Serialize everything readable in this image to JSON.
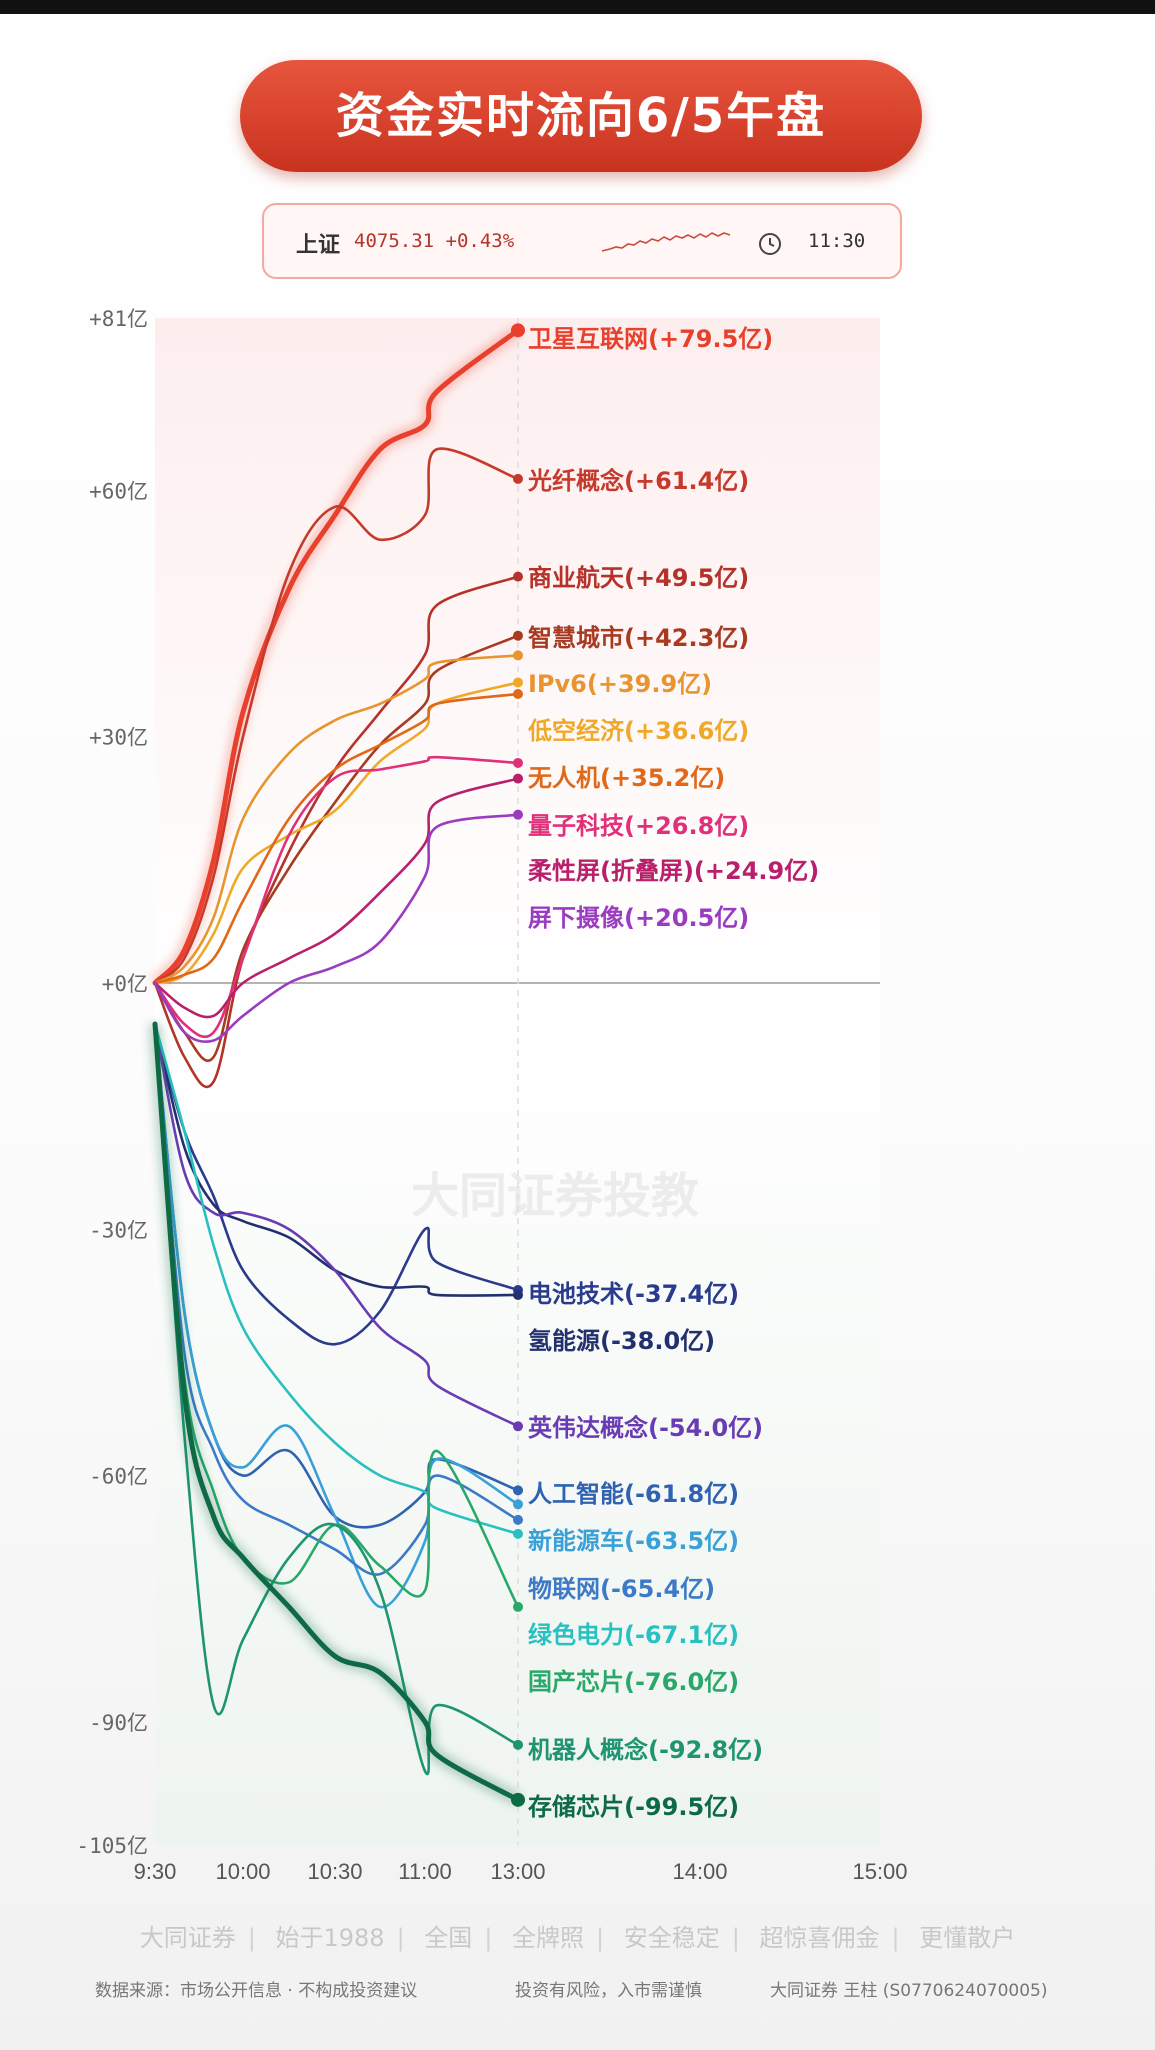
{
  "title": "资金实时流向6/5午盘",
  "ticker": {
    "name": "上证",
    "value": "4075.31 +0.43%",
    "time": "11:30",
    "clock_icon": "clock-icon"
  },
  "watermark": "大同证券投教",
  "footer": {
    "links": [
      "大同证券",
      "始于1988",
      "全国",
      "全牌照",
      "安全稳定",
      "超惊喜佣金",
      "更懂散户"
    ],
    "source": "数据来源：市场公开信息 · 不构成投资建议",
    "risk": "投资有风险，入市需谨慎",
    "author": "大同证券 王柱 (S0770624070005)"
  },
  "chart_data": {
    "type": "line",
    "title": "资金实时流向6/5午盘",
    "x_ticks": [
      "9:30",
      "10:00",
      "10:30",
      "11:00",
      "13:00",
      "14:00",
      "15:00"
    ],
    "y_ticks": [
      "+81亿",
      "+60亿",
      "+30亿",
      "+0亿",
      "-30亿",
      "-60亿",
      "-90亿",
      "-105亿"
    ],
    "ylim": [
      -105,
      81
    ],
    "grid": false,
    "x": [
      "9:30",
      "9:40",
      "9:50",
      "10:00",
      "10:15",
      "10:30",
      "10:45",
      "11:00",
      "11:15",
      "13:00"
    ],
    "series": [
      {
        "name": "卫星互联网",
        "label": "卫星互联网(+79.5亿)",
        "color": "#e8402c",
        "values": [
          0,
          4,
          15,
          33,
          48,
          57,
          65,
          68,
          72,
          79.5
        ]
      },
      {
        "name": "光纤概念",
        "label": "光纤概念(+61.4亿)",
        "color": "#c53a2c",
        "values": [
          0,
          3,
          13,
          30,
          50,
          58,
          54,
          57,
          65,
          61.4
        ]
      },
      {
        "name": "商业航天",
        "label": "商业航天(+49.5亿)",
        "color": "#b4322a",
        "values": [
          0,
          -9,
          -12,
          3,
          16,
          26,
          33,
          40,
          46,
          49.5
        ]
      },
      {
        "name": "智慧城市",
        "label": "智慧城市(+42.3亿)",
        "color": "#a83a22",
        "values": [
          0,
          -6,
          -9,
          4,
          14,
          22,
          29,
          34,
          38,
          42.3
        ]
      },
      {
        "name": "IPv6",
        "label": "IPv6(+39.9亿)",
        "color": "#e89530",
        "values": [
          0,
          2,
          8,
          20,
          28,
          32,
          34,
          37,
          39,
          39.9
        ]
      },
      {
        "name": "低空经济",
        "label": "低空经济(+36.6亿)",
        "color": "#f0a828",
        "values": [
          0,
          1,
          6,
          14,
          18,
          21,
          27,
          31,
          34,
          36.6
        ]
      },
      {
        "name": "无人机",
        "label": "无人机(+35.2亿)",
        "color": "#e06818",
        "values": [
          0,
          1,
          3,
          10,
          20,
          26,
          29,
          32,
          34,
          35.2
        ]
      },
      {
        "name": "量子科技",
        "label": "量子科技(+26.8亿)",
        "color": "#e0307a",
        "values": [
          0,
          -5,
          -6,
          3,
          18,
          25,
          26,
          27,
          27.5,
          26.8
        ]
      },
      {
        "name": "柔性屏(折叠屏)",
        "label": "柔性屏(折叠屏)(+24.9亿)",
        "color": "#b8206c",
        "values": [
          0,
          -3,
          -4,
          0,
          3,
          6,
          11,
          17,
          22,
          24.9
        ]
      },
      {
        "name": "屏下摄像",
        "label": "屏下摄像(+20.5亿)",
        "color": "#9a3cc0",
        "values": [
          0,
          -6,
          -7,
          -4,
          0,
          2,
          5,
          13,
          19,
          20.5
        ]
      },
      {
        "name": "电池技术",
        "label": "电池技术(-37.4亿)",
        "color": "#2a3a8c",
        "values": [
          -5,
          -18,
          -26,
          -35,
          -41,
          -44,
          -40,
          -30,
          -34,
          -37.4
        ]
      },
      {
        "name": "氢能源",
        "label": "氢能源(-38.0亿)",
        "color": "#23306e",
        "values": [
          -5,
          -20,
          -27,
          -29,
          -31,
          -35,
          -37,
          -37,
          -38,
          -38.0
        ]
      },
      {
        "name": "英伟达概念",
        "label": "英伟达概念(-54.0亿)",
        "color": "#6a3cb4",
        "values": [
          -5,
          -23,
          -28,
          -28,
          -30,
          -35,
          -42,
          -46,
          -49,
          -54.0
        ]
      },
      {
        "name": "人工智能",
        "label": "人工智能(-61.8亿)",
        "color": "#2f62b0",
        "values": [
          -5,
          -40,
          -55,
          -60,
          -57,
          -65,
          -66,
          -62,
          -58,
          -61.8
        ]
      },
      {
        "name": "新能源车",
        "label": "新能源车(-63.5亿)",
        "color": "#3aa0d8",
        "values": [
          -5,
          -40,
          -55,
          -59,
          -54,
          -65,
          -76,
          -68,
          -58,
          -63.5
        ]
      },
      {
        "name": "物联网",
        "label": "物联网(-65.4亿)",
        "color": "#3c7ac8",
        "values": [
          -5,
          -45,
          -57,
          -63,
          -66,
          -69,
          -72,
          -66,
          -60,
          -65.4
        ]
      },
      {
        "name": "绿色电力",
        "label": "绿色电力(-67.1亿)",
        "color": "#28c0c0",
        "values": [
          -5,
          -18,
          -32,
          -42,
          -50,
          -56,
          -60,
          -62,
          -64,
          -67.1
        ]
      },
      {
        "name": "国产芯片",
        "label": "国产芯片(-76.0亿)",
        "color": "#2aa86a",
        "values": [
          -5,
          -48,
          -62,
          -70,
          -73,
          -66,
          -71,
          -74,
          -57,
          -76.0
        ]
      },
      {
        "name": "机器人概念",
        "label": "机器人概念(-92.8亿)",
        "color": "#1e9470",
        "values": [
          -5,
          -55,
          -88,
          -80,
          -70,
          -66,
          -74,
          -96,
          -88,
          -92.8
        ]
      },
      {
        "name": "存储芯片",
        "label": "存储芯片(-99.5亿)",
        "color": "#0d6a44",
        "values": [
          -5,
          -50,
          -65,
          -70,
          -76,
          -82,
          -84,
          -90,
          -94,
          -99.5
        ]
      }
    ]
  }
}
